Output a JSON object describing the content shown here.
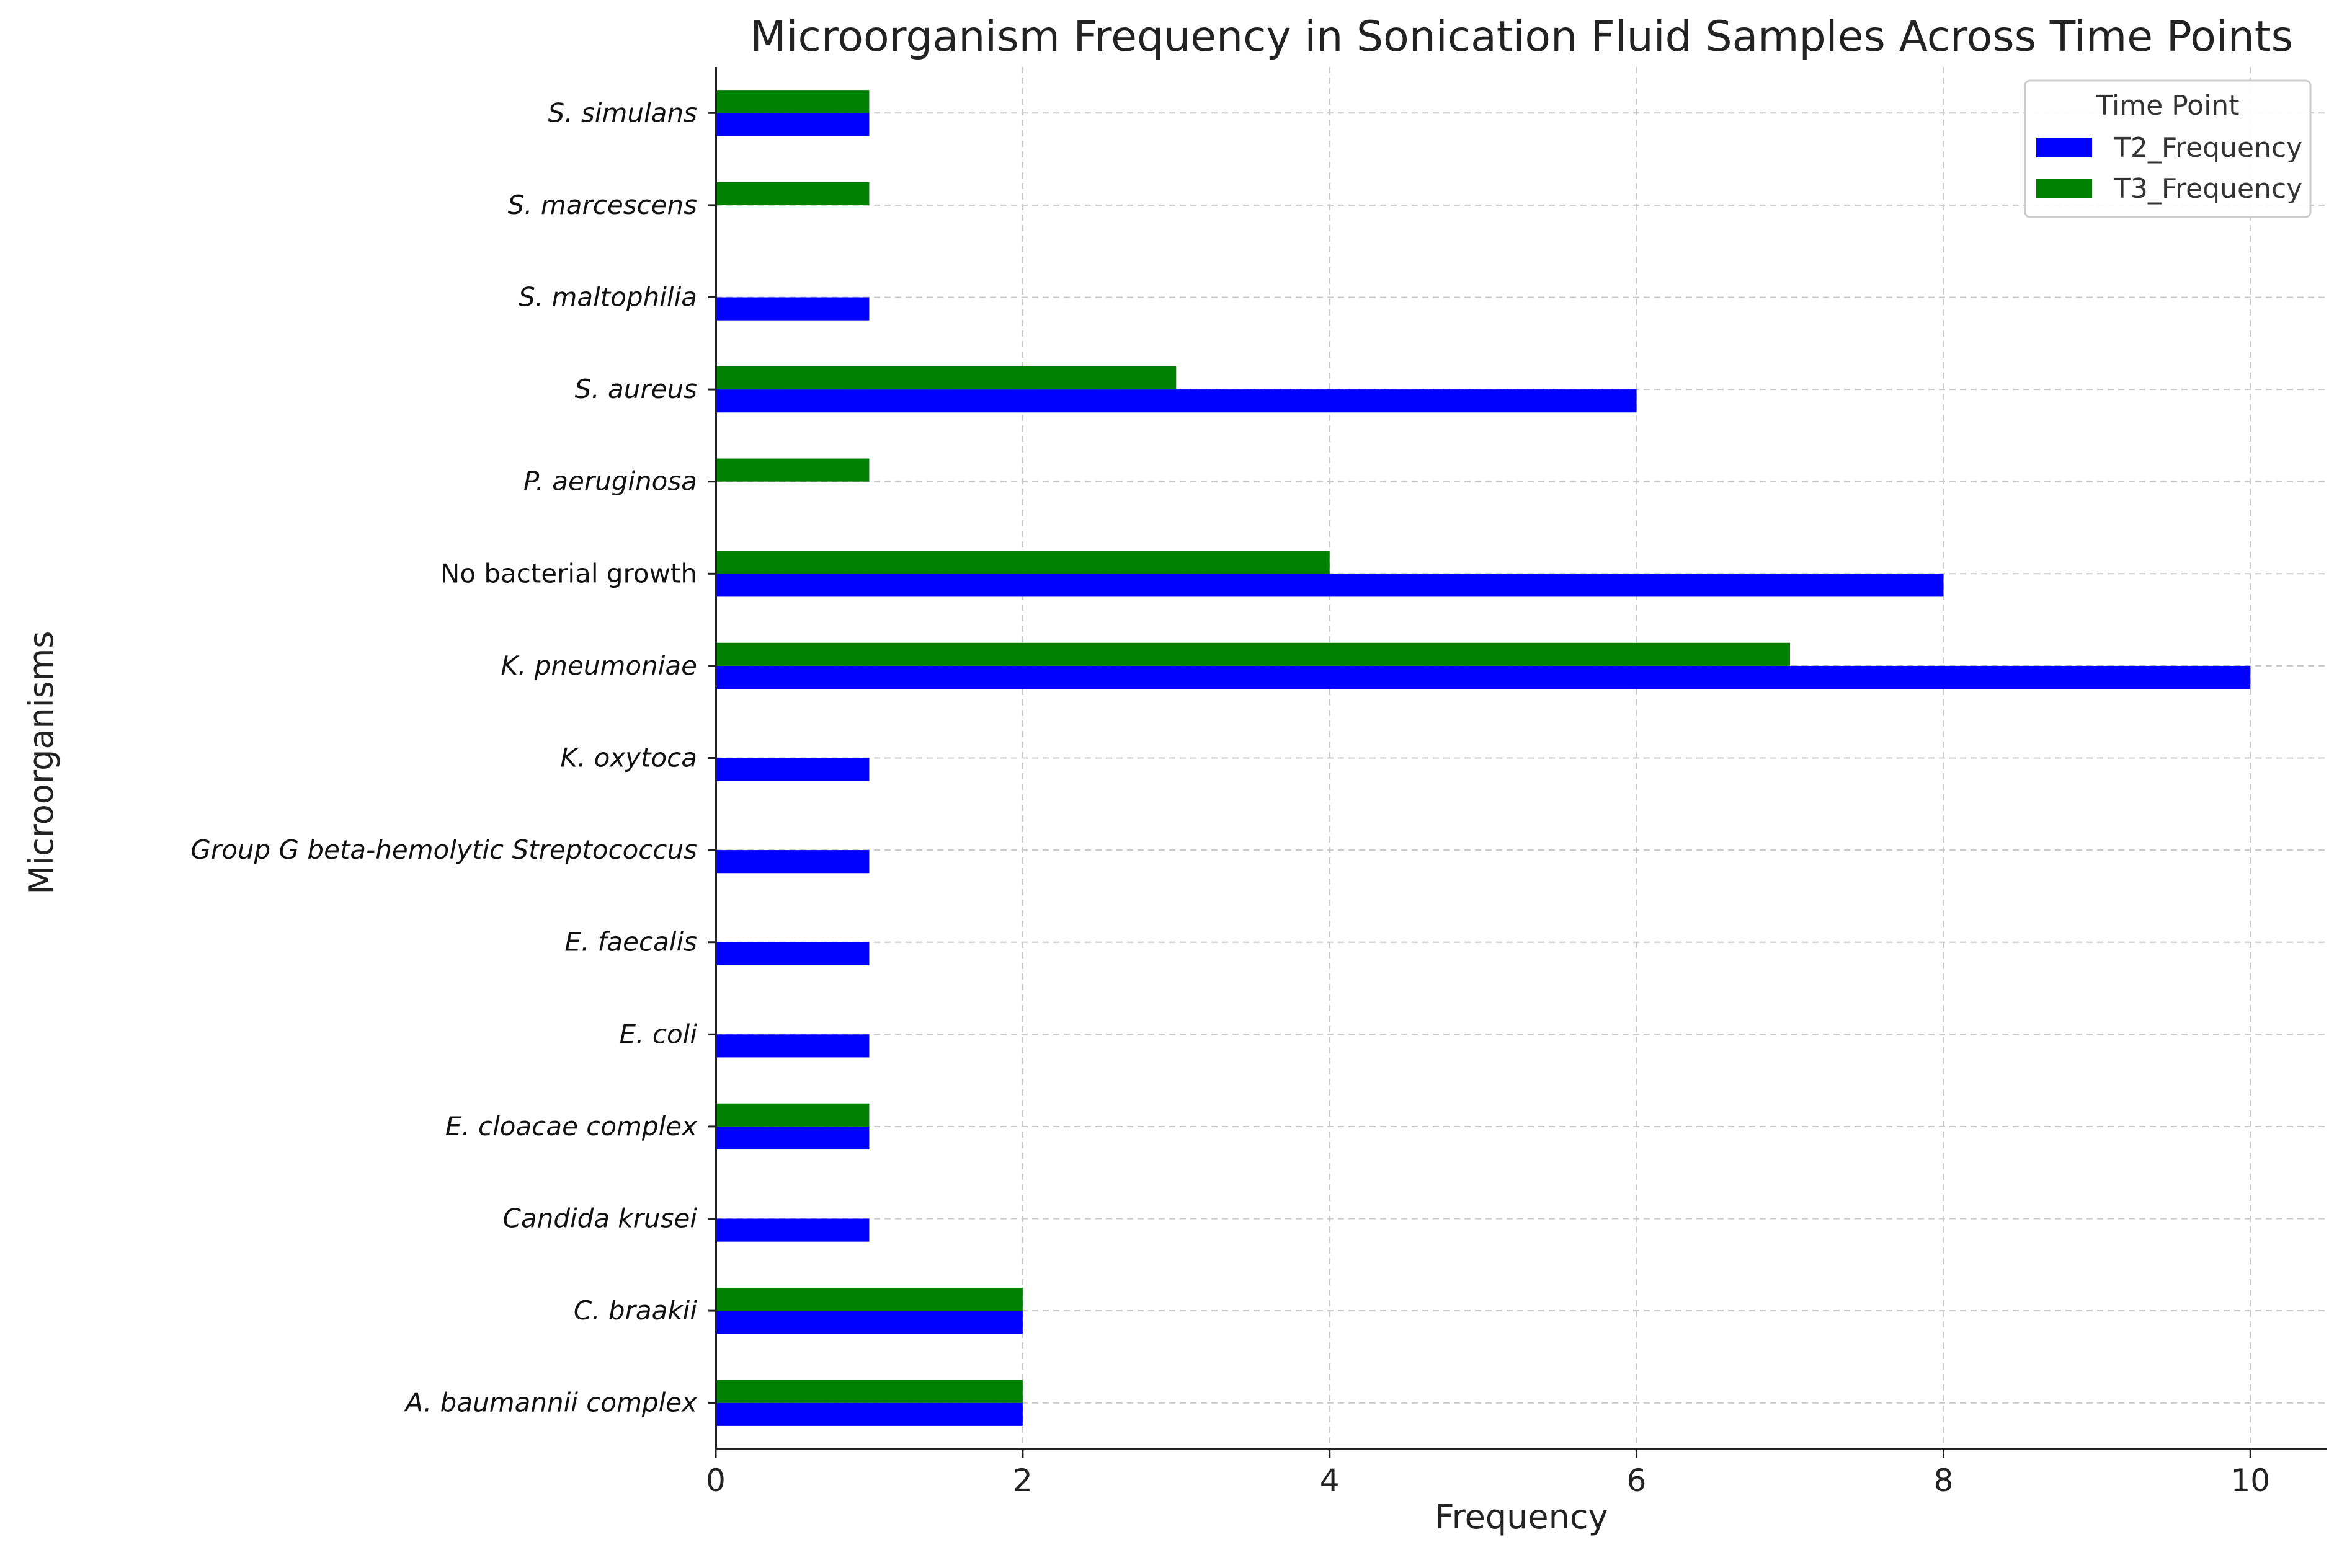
{
  "chart_data": {
    "type": "bar",
    "orientation": "horizontal",
    "title": "Microorganism Frequency in Sonication Fluid Samples Across Time Points",
    "xlabel": "Frequency",
    "ylabel": "Microorganisms",
    "xlim": [
      0,
      10.5
    ],
    "xticks": [
      0,
      2,
      4,
      6,
      8,
      10
    ],
    "grid": true,
    "legend": {
      "title": "Time Point",
      "position": "top-right"
    },
    "colors": {
      "T2_Frequency": "#0000ff",
      "T3_Frequency": "#008000"
    },
    "categories": [
      "A. baumannii complex",
      "C. braakii",
      "Candida krusei",
      "E. cloacae complex",
      "E. coli",
      "E. faecalis",
      "Group G beta-hemolytic Streptococcus",
      "K. oxytoca",
      "K. pneumoniae",
      "No bacterial growth",
      "P. aeruginosa",
      "S. aureus",
      "S. maltophilia",
      "S. marcescens",
      "S. simulans"
    ],
    "italic_categories": [
      "A. baumannii complex",
      "C. braakii",
      "Candida krusei",
      "E. cloacae complex",
      "E. coli",
      "E. faecalis",
      "Group G beta-hemolytic Streptococcus",
      "K. oxytoca",
      "K. pneumoniae",
      "P. aeruginosa",
      "S. aureus",
      "S. maltophilia",
      "S. marcescens",
      "S. simulans"
    ],
    "series": [
      {
        "name": "T2_Frequency",
        "values": [
          2,
          2,
          1,
          1,
          1,
          1,
          1,
          1,
          10,
          8,
          0,
          6,
          1,
          0,
          1
        ]
      },
      {
        "name": "T3_Frequency",
        "values": [
          2,
          2,
          0,
          1,
          0,
          0,
          0,
          0,
          7,
          4,
          1,
          3,
          0,
          1,
          1
        ]
      }
    ]
  }
}
